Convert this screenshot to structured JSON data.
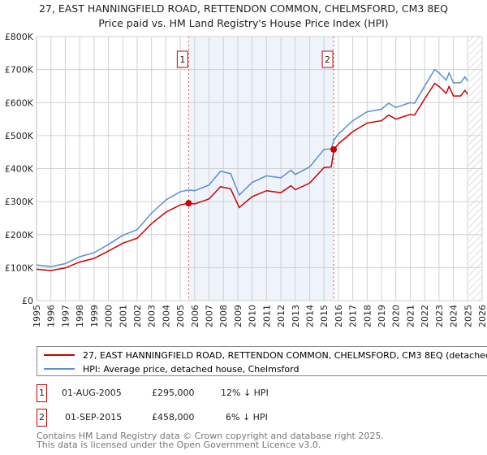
{
  "chart_data": {
    "type": "line",
    "title": "27, EAST HANNINGFIELD ROAD, RETTENDON COMMON, CHELMSFORD, CM3 8EQ",
    "subtitle": "Price paid vs. HM Land Registry's House Price Index (HPI)",
    "xlim": [
      1995,
      2026
    ],
    "ylim": [
      0,
      800000
    ],
    "x_ticks": [
      "1995",
      "1996",
      "1997",
      "1998",
      "1999",
      "2000",
      "2001",
      "2002",
      "2003",
      "2004",
      "2005",
      "2006",
      "2007",
      "2008",
      "2009",
      "2010",
      "2011",
      "2012",
      "2013",
      "2014",
      "2015",
      "2016",
      "2017",
      "2018",
      "2019",
      "2020",
      "2021",
      "2022",
      "2023",
      "2024",
      "2025",
      "2026"
    ],
    "y_ticks": [
      {
        "v": 0,
        "label": "£0"
      },
      {
        "v": 100000,
        "label": "£100K"
      },
      {
        "v": 200000,
        "label": "£200K"
      },
      {
        "v": 300000,
        "label": "£300K"
      },
      {
        "v": 400000,
        "label": "£400K"
      },
      {
        "v": 500000,
        "label": "£500K"
      },
      {
        "v": 600000,
        "label": "£600K"
      },
      {
        "v": 700000,
        "label": "£700K"
      },
      {
        "v": 800000,
        "label": "£800K"
      }
    ],
    "grid": true,
    "x": [
      1995,
      1996,
      1997,
      1998,
      1999,
      2000,
      2001,
      2002,
      2003,
      2004,
      2005,
      2005.6,
      2006,
      2007,
      2007.8,
      2008.5,
      2009.1,
      2010,
      2011,
      2012,
      2012.7,
      2013,
      2014,
      2015,
      2015.5,
      2015.7,
      2016,
      2017,
      2018,
      2019,
      2019.5,
      2020,
      2021,
      2021.3,
      2022,
      2022.7,
      2023,
      2023.5,
      2023.7,
      2024,
      2024.5,
      2024.8,
      2025
    ],
    "series": [
      {
        "name": "27, EAST HANNINGFIELD ROAD, RETTENDON COMMON, CHELMSFORD, CM3 8EQ (detached house)",
        "color": "#cc0000",
        "values": [
          95000,
          91000,
          99000,
          117000,
          128000,
          150000,
          174000,
          189000,
          233000,
          268000,
          290000,
          295000,
          293000,
          308000,
          345000,
          339000,
          282000,
          315000,
          333000,
          327000,
          348000,
          336000,
          356000,
          403000,
          405000,
          458000,
          475000,
          512000,
          538000,
          545000,
          562000,
          550000,
          564000,
          562000,
          611000,
          658000,
          649000,
          628000,
          649000,
          620000,
          620000,
          637000,
          625000
        ]
      },
      {
        "name": "HPI: Average price, detached house, Chelmsford",
        "color": "#5b8fd1",
        "values": [
          108000,
          103000,
          112000,
          133000,
          145000,
          170000,
          198000,
          215000,
          265000,
          305000,
          330000,
          335000,
          333000,
          350000,
          392000,
          385000,
          320000,
          358000,
          378000,
          372000,
          395000,
          382000,
          405000,
          458000,
          460000,
          487000,
          505000,
          545000,
          572000,
          580000,
          598000,
          585000,
          600000,
          598000,
          650000,
          700000,
          690000,
          668000,
          690000,
          660000,
          660000,
          678000,
          665000
        ]
      }
    ],
    "sales": [
      {
        "label": "1",
        "x": 2005.58,
        "price": 295000,
        "date": "01-AUG-2005",
        "price_text": "£295,000",
        "hpi_text": "12% ↓ HPI"
      },
      {
        "label": "2",
        "x": 2015.67,
        "price": 458000,
        "date": "01-SEP-2015",
        "price_text": "£458,000",
        "hpi_text": "6% ↓ HPI"
      }
    ],
    "shaded_range": [
      2005.58,
      2015.67
    ],
    "forecast_hatch_from": 2025.1
  },
  "footer": [
    "Contains HM Land Registry data © Crown copyright and database right 2025.",
    "This data is licensed under the Open Government Licence v3.0."
  ]
}
